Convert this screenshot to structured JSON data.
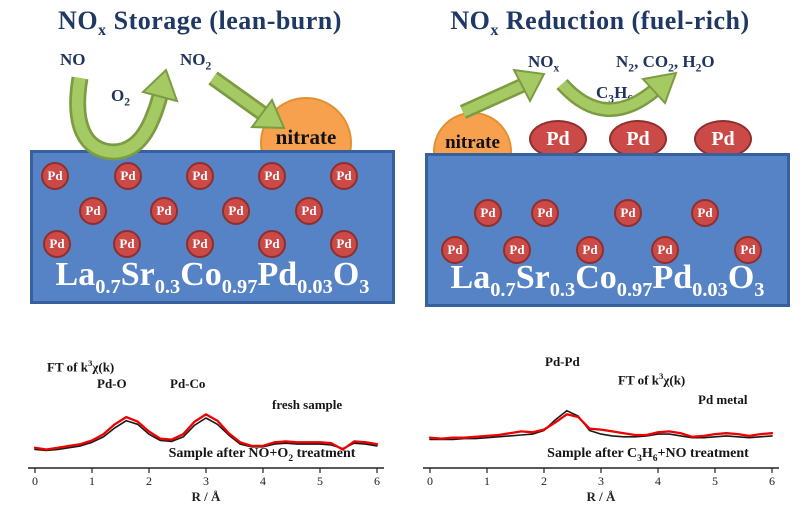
{
  "pd_label": "Pd",
  "panels": {
    "left": {
      "title": [
        {
          "t": "NO"
        },
        {
          "s": "x"
        },
        {
          "t": " Storage (lean-burn)"
        }
      ],
      "gas_in": "NO",
      "gas_mid": [
        {
          "t": "O"
        },
        {
          "s": "2"
        }
      ],
      "gas_out": [
        {
          "t": "NO"
        },
        {
          "s": "2"
        }
      ],
      "nitrate_label": "nitrate",
      "formula": [
        {
          "t": "La"
        },
        {
          "s": "0.7"
        },
        {
          "t": "Sr"
        },
        {
          "s": "0.3"
        },
        {
          "t": "Co"
        },
        {
          "s": "0.97"
        },
        {
          "t": "Pd"
        },
        {
          "s": "0.03"
        },
        {
          "t": "O"
        },
        {
          "s": "3"
        }
      ]
    },
    "right": {
      "title": [
        {
          "t": "NO"
        },
        {
          "s": "x"
        },
        {
          "t": " Reduction (fuel-rich)"
        }
      ],
      "gas_release": [
        {
          "t": "NO"
        },
        {
          "s": "x"
        }
      ],
      "reductant": [
        {
          "t": "C"
        },
        {
          "s": "3"
        },
        {
          "t": "H"
        },
        {
          "s": "6"
        }
      ],
      "products": [
        {
          "t": "N"
        },
        {
          "s": "2"
        },
        {
          "t": ", CO"
        },
        {
          "s": "2"
        },
        {
          "t": ", H"
        },
        {
          "s": "2"
        },
        {
          "t": "O"
        }
      ],
      "nitrate_label": "nitrate",
      "surface_pd": [
        "Pd",
        "Pd",
        "Pd"
      ],
      "formula": [
        {
          "t": "La"
        },
        {
          "s": "0.7"
        },
        {
          "t": "Sr"
        },
        {
          "s": "0.3"
        },
        {
          "t": "Co"
        },
        {
          "s": "0.97"
        },
        {
          "t": "Pd"
        },
        {
          "s": "0.03"
        },
        {
          "t": "O"
        },
        {
          "s": "3"
        }
      ]
    }
  },
  "chart_data": [
    {
      "type": "line",
      "xlabel": "R / Å",
      "xlim": [
        0,
        6
      ],
      "xticks": [
        "0",
        "1",
        "2",
        "3",
        "4",
        "5",
        "6"
      ],
      "weight_label": [
        {
          "t": "FT of k"
        },
        {
          "sup": "3"
        },
        {
          "t": "χ(k)"
        }
      ],
      "peak_labels": [
        "Pd-O",
        "Pd-Co"
      ],
      "ref_label": "fresh sample",
      "caption": [
        {
          "t": "Sample after NO+O"
        },
        {
          "s": "2"
        },
        {
          "t": " treatment"
        }
      ],
      "series": [
        {
          "name": "fresh sample",
          "color": "#1A1A1A",
          "R": [
            0,
            0.2,
            0.4,
            0.6,
            0.8,
            1,
            1.2,
            1.4,
            1.6,
            1.8,
            2,
            2.2,
            2.4,
            2.6,
            2.8,
            3,
            3.2,
            3.4,
            3.6,
            3.8,
            4,
            4.2,
            4.4,
            4.6,
            4.8,
            5,
            5.2,
            5.4,
            5.6,
            5.8,
            6
          ],
          "values": [
            0.05,
            0.04,
            0.05,
            0.07,
            0.09,
            0.13,
            0.19,
            0.29,
            0.37,
            0.33,
            0.22,
            0.15,
            0.14,
            0.19,
            0.32,
            0.4,
            0.33,
            0.21,
            0.11,
            0.08,
            0.08,
            0.11,
            0.12,
            0.11,
            0.11,
            0.11,
            0.1,
            0.06,
            0.12,
            0.11,
            0.09
          ]
        },
        {
          "name": "sample after NO+O2 treatment",
          "color": "#EE0000",
          "R": [
            0,
            0.2,
            0.4,
            0.6,
            0.8,
            1,
            1.2,
            1.4,
            1.6,
            1.8,
            2,
            2.2,
            2.4,
            2.6,
            2.8,
            3,
            3.2,
            3.4,
            3.6,
            3.8,
            4,
            4.2,
            4.4,
            4.6,
            4.8,
            5,
            5.2,
            5.4,
            5.6,
            5.8,
            6
          ],
          "values": [
            0.07,
            0.05,
            0.07,
            0.09,
            0.11,
            0.15,
            0.22,
            0.33,
            0.41,
            0.36,
            0.25,
            0.17,
            0.16,
            0.22,
            0.36,
            0.44,
            0.37,
            0.23,
            0.13,
            0.09,
            0.09,
            0.13,
            0.14,
            0.13,
            0.13,
            0.13,
            0.12,
            0.05,
            0.14,
            0.13,
            0.11
          ]
        }
      ]
    },
    {
      "type": "line",
      "xlabel": "R / Å",
      "xlim": [
        0,
        6
      ],
      "xticks": [
        "0",
        "1",
        "2",
        "3",
        "4",
        "5",
        "6"
      ],
      "weight_label": [
        {
          "t": "FT of k"
        },
        {
          "sup": "3"
        },
        {
          "t": "χ(k)"
        }
      ],
      "peak_labels": [
        "Pd-Pd"
      ],
      "ref_label": "Pd metal",
      "caption": [
        {
          "t": "Sample after C"
        },
        {
          "s": "3"
        },
        {
          "t": "H"
        },
        {
          "s": "6"
        },
        {
          "t": "+NO treatment"
        }
      ],
      "series": [
        {
          "name": "Pd metal",
          "color": "#1A1A1A",
          "R": [
            0,
            0.2,
            0.4,
            0.6,
            0.8,
            1,
            1.2,
            1.4,
            1.6,
            1.8,
            2,
            2.2,
            2.4,
            2.6,
            2.8,
            3,
            3.2,
            3.4,
            3.6,
            3.8,
            4,
            4.2,
            4.4,
            4.6,
            4.8,
            5,
            5.2,
            5.4,
            5.6,
            5.8,
            6
          ],
          "values": [
            0.05,
            0.05,
            0.05,
            0.06,
            0.06,
            0.07,
            0.08,
            0.09,
            0.1,
            0.11,
            0.15,
            0.27,
            0.37,
            0.31,
            0.15,
            0.11,
            0.09,
            0.08,
            0.08,
            0.09,
            0.11,
            0.11,
            0.09,
            0.07,
            0.07,
            0.08,
            0.09,
            0.08,
            0.07,
            0.08,
            0.09
          ]
        },
        {
          "name": "sample after C3H6+NO treatment",
          "color": "#EE0000",
          "R": [
            0,
            0.2,
            0.4,
            0.6,
            0.8,
            1,
            1.2,
            1.4,
            1.6,
            1.8,
            2,
            2.2,
            2.4,
            2.6,
            2.8,
            3,
            3.2,
            3.4,
            3.6,
            3.8,
            4,
            4.2,
            4.4,
            4.6,
            4.8,
            5,
            5.2,
            5.4,
            5.6,
            5.8,
            6
          ],
          "values": [
            0.07,
            0.06,
            0.07,
            0.07,
            0.08,
            0.09,
            0.1,
            0.12,
            0.14,
            0.13,
            0.16,
            0.24,
            0.33,
            0.3,
            0.17,
            0.16,
            0.14,
            0.12,
            0.1,
            0.1,
            0.13,
            0.14,
            0.12,
            0.08,
            0.09,
            0.11,
            0.12,
            0.11,
            0.09,
            0.11,
            0.12
          ]
        }
      ]
    }
  ]
}
